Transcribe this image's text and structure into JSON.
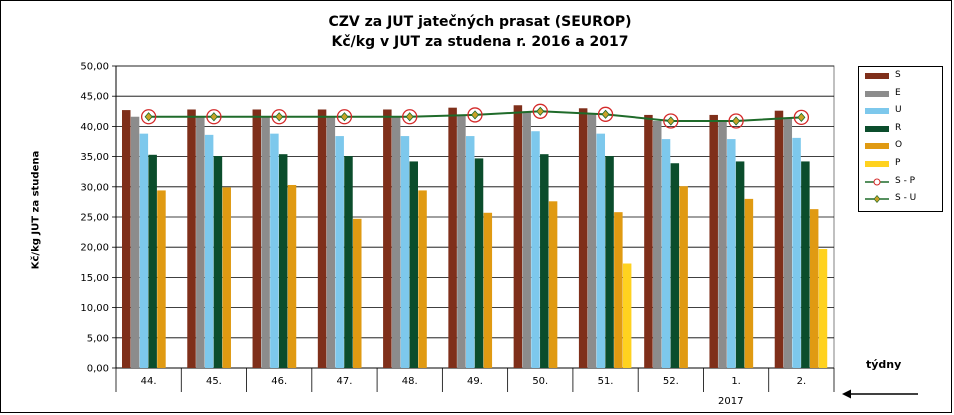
{
  "chart_data": {
    "type": "bar",
    "title": "CZV za JUT jatečných prasat (SEUROP)",
    "subtitle": "Kč/kg v JUT za studena r. 2016 a 2017",
    "ylabel": "Kč/kg  JUT za studena",
    "xlabel": "týdny",
    "year_label": "2017",
    "ylim": [
      0,
      50
    ],
    "yticks": [
      "0,00",
      "5,00",
      "10,00",
      "15,00",
      "20,00",
      "25,00",
      "30,00",
      "35,00",
      "40,00",
      "45,00",
      "50,00"
    ],
    "grid": true,
    "legend_position": "right",
    "categories": [
      "44.",
      "45.",
      "46.",
      "47.",
      "48.",
      "49.",
      "50.",
      "51.",
      "52.",
      "1.",
      "2."
    ],
    "series": [
      {
        "name": "S",
        "kind": "bar",
        "color": "#7f2f1a",
        "values": [
          42.7,
          42.8,
          42.8,
          42.8,
          42.8,
          43.1,
          43.5,
          43.0,
          41.9,
          41.9,
          42.6
        ]
      },
      {
        "name": "E",
        "kind": "bar",
        "color": "#8c8c8c",
        "values": [
          41.6,
          41.6,
          41.6,
          41.6,
          41.6,
          41.9,
          42.5,
          42.0,
          40.9,
          40.9,
          41.5
        ]
      },
      {
        "name": "U",
        "kind": "bar",
        "color": "#7dc8ec",
        "values": [
          38.8,
          38.6,
          38.8,
          38.4,
          38.4,
          38.4,
          39.2,
          38.8,
          37.9,
          37.9,
          38.1
        ]
      },
      {
        "name": "R",
        "kind": "bar",
        "color": "#0b4d2c",
        "values": [
          35.3,
          35.1,
          35.4,
          35.1,
          34.2,
          34.7,
          35.4,
          35.1,
          33.9,
          34.2,
          34.2
        ]
      },
      {
        "name": "O",
        "kind": "bar",
        "color": "#e09a12",
        "values": [
          29.4,
          29.9,
          30.3,
          24.7,
          29.4,
          25.7,
          27.6,
          25.8,
          30.1,
          28.0,
          26.3
        ]
      },
      {
        "name": "P",
        "kind": "bar",
        "color": "#ffd21f",
        "values": [
          null,
          null,
          null,
          null,
          null,
          null,
          null,
          17.3,
          null,
          null,
          19.7
        ]
      },
      {
        "name": "S - P",
        "kind": "line",
        "color": "#d42a2a",
        "values": [
          41.6,
          41.6,
          41.6,
          41.6,
          41.6,
          41.9,
          42.5,
          42.0,
          40.9,
          40.9,
          41.5
        ]
      },
      {
        "name": "S - U",
        "kind": "line",
        "color": "#1f6b2a",
        "values": [
          41.6,
          41.6,
          41.6,
          41.6,
          41.6,
          41.9,
          42.5,
          42.0,
          40.9,
          40.9,
          41.5
        ]
      }
    ]
  }
}
